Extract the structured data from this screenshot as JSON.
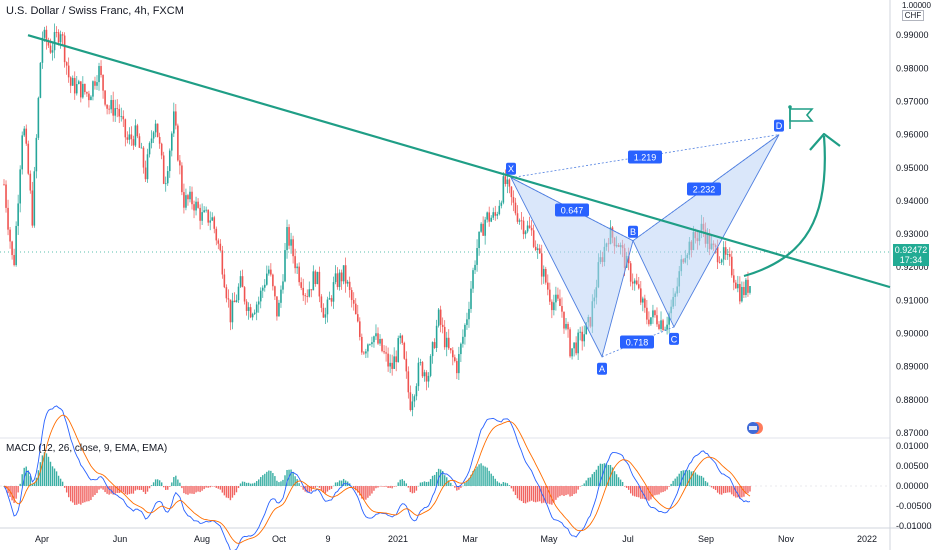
{
  "header": {
    "title": "U.S. Dollar / Swiss Franc, 4h, FXCM",
    "unit_top": "1.00000",
    "unit_label": "CHF"
  },
  "macd": {
    "title": "MACD (12, 26, close, 9, EMA, EMA)",
    "yticks": [
      "0.01000",
      "0.00500",
      "0.00000",
      "-0.00500",
      "-0.01000"
    ]
  },
  "price_tag": {
    "price": "0.92472",
    "countdown": "17:34"
  },
  "colors": {
    "trendline": "#1f9e86",
    "pattern_fill": "#bcd3f5",
    "pattern_line": "#4f7fe0",
    "candle_up": "#26a69a",
    "candle_down": "#ef5350",
    "macd_line": "#2962ff",
    "signal_line": "#ff6d00",
    "label_bg": "#2962ff"
  },
  "icons": [
    "flag-icon",
    "curved-arrow-icon",
    "economic-events-icon"
  ],
  "chart_data": {
    "type": "candlestick",
    "title": "U.S. Dollar / Swiss Franc, 4h, FXCM",
    "y_range": [
      0.87,
      1.0
    ],
    "ytick_labels": [
      "0.99000",
      "0.98000",
      "0.97000",
      "0.96000",
      "0.95000",
      "0.94000",
      "0.93000",
      "0.92000",
      "0.91000",
      "0.90000",
      "0.89000",
      "0.88000",
      "0.87000"
    ],
    "xtick_labels": [
      "Apr",
      "Jun",
      "Aug",
      "Oct",
      "9",
      "2021",
      "Mar",
      "May",
      "Jul",
      "Sep",
      "Nov",
      "2022"
    ],
    "price_path": [
      [
        0.945,
        0.919
      ],
      [
        0.965,
        0.935
      ],
      [
        0.99,
        0.986
      ],
      [
        0.992,
        0.975
      ],
      [
        0.974,
        0.972
      ],
      [
        0.98,
        0.968
      ],
      [
        0.968,
        0.958
      ],
      [
        0.96,
        0.948
      ],
      [
        0.966,
        0.945
      ],
      [
        0.965,
        0.94
      ],
      [
        0.94,
        0.935
      ],
      [
        0.935,
        0.923
      ],
      [
        0.905,
        0.915
      ],
      [
        0.907,
        0.91
      ],
      [
        0.92,
        0.905
      ],
      [
        0.93,
        0.92
      ],
      [
        0.912,
        0.918
      ],
      [
        0.905,
        0.915
      ],
      [
        0.918,
        0.908
      ],
      [
        0.895,
        0.9
      ],
      [
        0.895,
        0.889
      ],
      [
        0.898,
        0.879
      ],
      [
        0.89,
        0.888
      ],
      [
        0.905,
        0.895
      ],
      [
        0.89,
        0.905
      ],
      [
        0.925,
        0.935
      ],
      [
        0.935,
        0.946
      ],
      [
        0.938,
        0.933
      ],
      [
        0.93,
        0.919
      ],
      [
        0.91,
        0.908
      ],
      [
        0.895,
        0.898
      ],
      [
        0.903,
        0.92
      ],
      [
        0.93,
        0.928
      ],
      [
        0.92,
        0.914
      ],
      [
        0.905,
        0.905
      ],
      [
        0.903,
        0.91
      ],
      [
        0.925,
        0.928
      ],
      [
        0.932,
        0.925
      ],
      [
        0.924,
        0.92
      ],
      [
        0.912,
        0.915
      ]
    ],
    "trendline": {
      "from": [
        "late Mar 2020",
        0.99
      ],
      "to": [
        "2022",
        0.914
      ]
    },
    "harmonic_pattern": {
      "points": [
        {
          "label": "X",
          "value": 0.947
        },
        {
          "label": "A",
          "value": 0.893
        },
        {
          "label": "B",
          "value": 0.928
        },
        {
          "label": "C",
          "value": 0.902
        },
        {
          "label": "D",
          "value": 0.96
        }
      ],
      "ratios": [
        {
          "label": "0.647"
        },
        {
          "label": "0.718"
        },
        {
          "label": "2.232"
        },
        {
          "label": "1.219"
        }
      ]
    },
    "last_price": 0.92472,
    "macd_y_range": [
      -0.01,
      0.01
    ]
  }
}
